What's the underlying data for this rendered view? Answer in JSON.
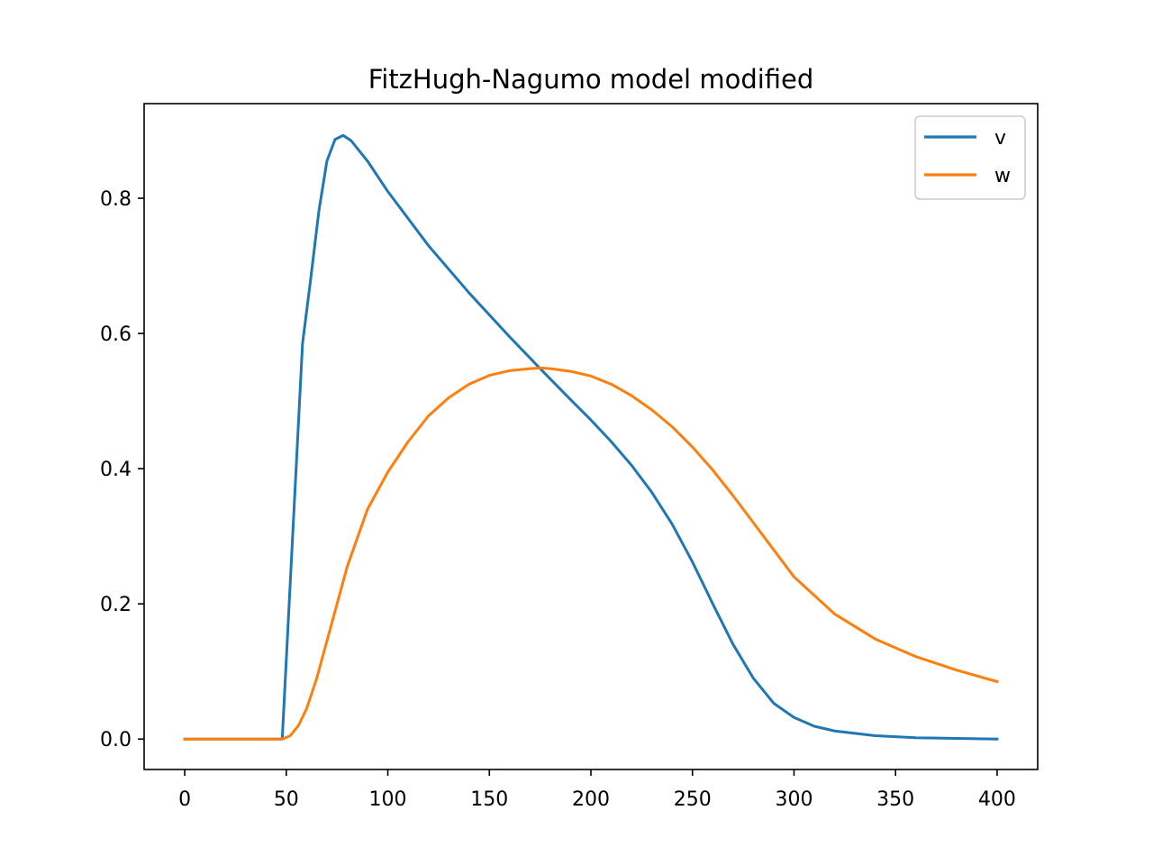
{
  "chart_data": {
    "type": "line",
    "title": "FitzHugh-Nagumo model modified",
    "xlabel": "",
    "ylabel": "",
    "xlim": [
      -20,
      420
    ],
    "ylim": [
      -0.045,
      0.94
    ],
    "xticks": [
      0,
      50,
      100,
      150,
      200,
      250,
      300,
      350,
      400
    ],
    "xtick_labels": [
      "0",
      "50",
      "100",
      "150",
      "200",
      "250",
      "300",
      "350",
      "400"
    ],
    "yticks": [
      0.0,
      0.2,
      0.4,
      0.6,
      0.8
    ],
    "ytick_labels": [
      "0.0",
      "0.2",
      "0.4",
      "0.6",
      "0.8"
    ],
    "grid": false,
    "legend_position": "top-right",
    "series": [
      {
        "name": "v",
        "color": "#1f77b4",
        "x": [
          0,
          48,
          58,
          62,
          66,
          70,
          74,
          78,
          82,
          90,
          100,
          120,
          140,
          160,
          175,
          190,
          200,
          210,
          220,
          230,
          240,
          250,
          260,
          270,
          280,
          290,
          300,
          310,
          320,
          340,
          360,
          380,
          400
        ],
        "y": [
          0,
          0,
          0.585,
          0.68,
          0.78,
          0.855,
          0.887,
          0.893,
          0.885,
          0.855,
          0.81,
          0.73,
          0.66,
          0.595,
          0.548,
          0.502,
          0.472,
          0.44,
          0.405,
          0.365,
          0.318,
          0.262,
          0.2,
          0.14,
          0.09,
          0.053,
          0.032,
          0.019,
          0.012,
          0.005,
          0.002,
          0.001,
          0.0
        ]
      },
      {
        "name": "w",
        "color": "#ff7f0e",
        "x": [
          0,
          48,
          52,
          56,
          60,
          65,
          70,
          75,
          80,
          90,
          100,
          110,
          120,
          130,
          140,
          150,
          160,
          170,
          175,
          180,
          190,
          200,
          210,
          220,
          230,
          240,
          250,
          260,
          270,
          280,
          290,
          300,
          320,
          340,
          360,
          380,
          400
        ],
        "y": [
          0,
          0,
          0.005,
          0.02,
          0.045,
          0.09,
          0.145,
          0.2,
          0.255,
          0.34,
          0.395,
          0.44,
          0.478,
          0.505,
          0.525,
          0.538,
          0.545,
          0.548,
          0.549,
          0.548,
          0.544,
          0.537,
          0.525,
          0.508,
          0.487,
          0.462,
          0.432,
          0.398,
          0.36,
          0.32,
          0.28,
          0.24,
          0.185,
          0.148,
          0.122,
          0.102,
          0.085
        ]
      }
    ]
  }
}
